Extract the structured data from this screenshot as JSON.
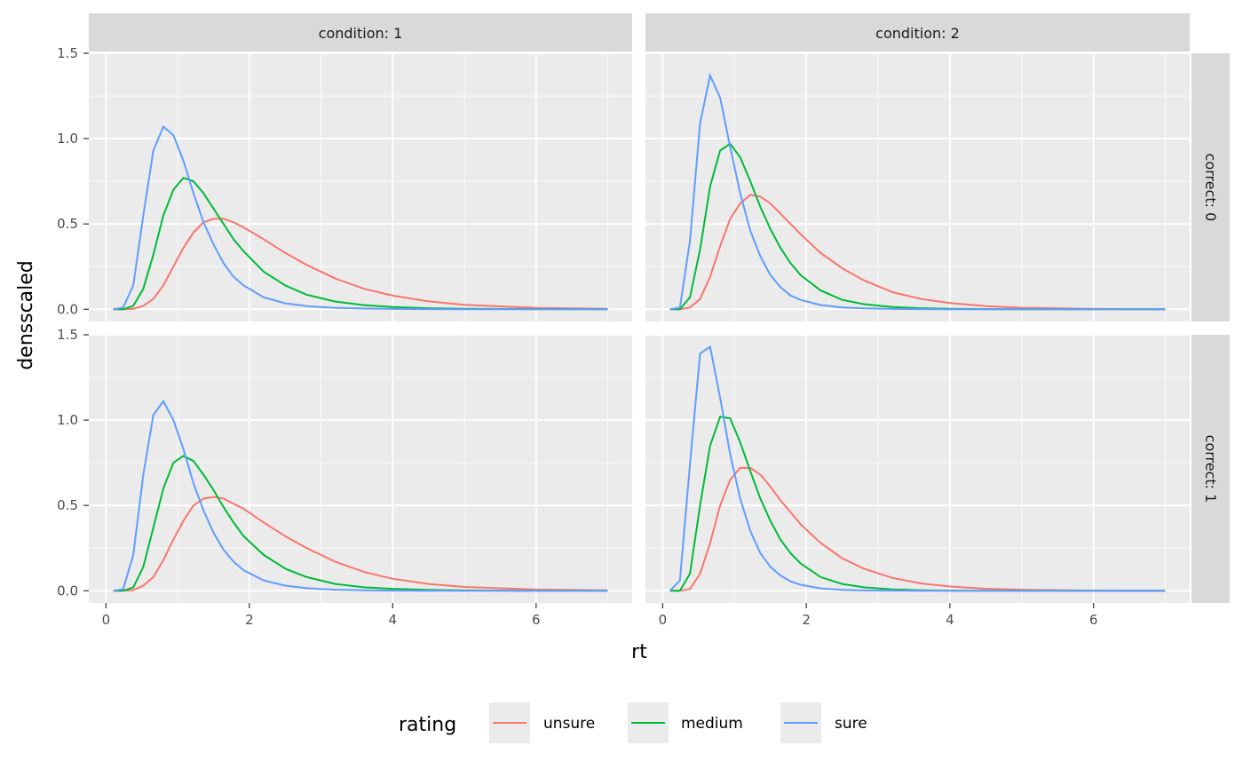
{
  "chart_data": {
    "type": "line",
    "xlabel": "rt",
    "ylabel": "densscaled",
    "xlim": [
      -0.24,
      7.34
    ],
    "ylim": [
      -0.0715,
      1.5
    ],
    "x_ticks": [
      0,
      2,
      4,
      6
    ],
    "x_tick_labels": [
      "0",
      "2",
      "4",
      "6"
    ],
    "y_ticks": [
      0,
      0.5,
      1.0,
      1.5
    ],
    "y_tick_labels": [
      "0.0",
      "0.5",
      "1.0",
      "1.5"
    ],
    "grid": true,
    "facet_cols": [
      "condition: 1",
      "condition: 2"
    ],
    "facet_rows": [
      "correct: 0",
      "correct: 1"
    ],
    "legend": {
      "title": "rating",
      "placement": "bottom",
      "entries": [
        "unsure",
        "medium",
        "sure"
      ]
    },
    "colors": {
      "unsure": "#F8766D",
      "medium": "#00BA38",
      "sure": "#619CFF"
    },
    "x": [
      0.1,
      0.24,
      0.38,
      0.52,
      0.66,
      0.8,
      0.94,
      1.08,
      1.22,
      1.36,
      1.5,
      1.64,
      1.78,
      1.92,
      2.2,
      2.5,
      2.8,
      3.2,
      3.6,
      4,
      4.5,
      5,
      6,
      7
    ],
    "panels": [
      {
        "condition": "condition: 1",
        "correct": "correct: 0",
        "series": [
          {
            "name": "unsure",
            "values": [
              0,
              0,
              0.003,
              0.02,
              0.06,
              0.14,
              0.25,
              0.36,
              0.45,
              0.51,
              0.53,
              0.53,
              0.51,
              0.48,
              0.41,
              0.33,
              0.26,
              0.18,
              0.12,
              0.08,
              0.046,
              0.026,
              0.008,
              0.003
            ]
          },
          {
            "name": "medium",
            "values": [
              0,
              0,
              0.02,
              0.12,
              0.32,
              0.55,
              0.7,
              0.77,
              0.75,
              0.68,
              0.59,
              0.5,
              0.41,
              0.34,
              0.22,
              0.14,
              0.085,
              0.045,
              0.024,
              0.013,
              0.006,
              0.003,
              0.001,
              0
            ]
          },
          {
            "name": "sure",
            "values": [
              0,
              0.01,
              0.14,
              0.55,
              0.93,
              1.07,
              1.02,
              0.87,
              0.68,
              0.51,
              0.38,
              0.27,
              0.19,
              0.14,
              0.07,
              0.035,
              0.018,
              0.008,
              0.004,
              0.002,
              0.001,
              0,
              0,
              0
            ]
          }
        ]
      },
      {
        "condition": "condition: 2",
        "correct": "correct: 0",
        "series": [
          {
            "name": "unsure",
            "values": [
              0,
              0,
              0.01,
              0.06,
              0.19,
              0.37,
              0.53,
              0.62,
              0.67,
              0.66,
              0.62,
              0.56,
              0.5,
              0.44,
              0.33,
              0.24,
              0.17,
              0.1,
              0.06,
              0.036,
              0.018,
              0.009,
              0.002,
              0
            ]
          },
          {
            "name": "medium",
            "values": [
              0,
              0,
              0.07,
              0.35,
              0.72,
              0.93,
              0.97,
              0.89,
              0.75,
              0.6,
              0.47,
              0.36,
              0.27,
              0.2,
              0.11,
              0.055,
              0.03,
              0.013,
              0.006,
              0.003,
              0.001,
              0,
              0,
              0
            ]
          },
          {
            "name": "sure",
            "values": [
              0,
              0.01,
              0.4,
              1.09,
              1.37,
              1.24,
              0.95,
              0.68,
              0.46,
              0.31,
              0.2,
              0.13,
              0.08,
              0.055,
              0.025,
              0.01,
              0.005,
              0.002,
              0.001,
              0,
              0,
              0,
              0,
              0
            ]
          }
        ]
      },
      {
        "condition": "condition: 1",
        "correct": "correct: 1",
        "series": [
          {
            "name": "unsure",
            "values": [
              0,
              0,
              0.004,
              0.03,
              0.08,
              0.18,
              0.3,
              0.41,
              0.5,
              0.54,
              0.55,
              0.54,
              0.51,
              0.48,
              0.4,
              0.32,
              0.25,
              0.17,
              0.11,
              0.07,
              0.04,
              0.022,
              0.007,
              0.002
            ]
          },
          {
            "name": "medium",
            "values": [
              0,
              0,
              0.02,
              0.14,
              0.37,
              0.6,
              0.75,
              0.79,
              0.76,
              0.68,
              0.59,
              0.49,
              0.4,
              0.32,
              0.21,
              0.13,
              0.08,
              0.04,
              0.02,
              0.011,
              0.005,
              0.002,
              0,
              0
            ]
          },
          {
            "name": "sure",
            "values": [
              0,
              0.01,
              0.21,
              0.68,
              1.03,
              1.11,
              1.0,
              0.83,
              0.63,
              0.47,
              0.34,
              0.24,
              0.17,
              0.12,
              0.06,
              0.03,
              0.015,
              0.006,
              0.003,
              0.001,
              0,
              0,
              0,
              0
            ]
          }
        ]
      },
      {
        "condition": "condition: 2",
        "correct": "correct: 1",
        "series": [
          {
            "name": "unsure",
            "values": [
              0,
              0,
              0.01,
              0.1,
              0.28,
              0.5,
              0.65,
              0.72,
              0.72,
              0.68,
              0.61,
              0.53,
              0.46,
              0.39,
              0.28,
              0.19,
              0.13,
              0.075,
              0.043,
              0.025,
              0.012,
              0.006,
              0.001,
              0
            ]
          },
          {
            "name": "medium",
            "values": [
              0,
              0,
              0.1,
              0.5,
              0.85,
              1.02,
              1.01,
              0.87,
              0.7,
              0.54,
              0.41,
              0.3,
              0.22,
              0.16,
              0.08,
              0.04,
              0.02,
              0.008,
              0.003,
              0.001,
              0,
              0,
              0,
              0
            ]
          },
          {
            "name": "sure",
            "values": [
              0,
              0.06,
              0.74,
              1.39,
              1.43,
              1.13,
              0.8,
              0.54,
              0.35,
              0.22,
              0.14,
              0.09,
              0.055,
              0.035,
              0.014,
              0.005,
              0.002,
              0.001,
              0,
              0,
              0,
              0,
              0,
              0
            ]
          }
        ]
      }
    ]
  }
}
